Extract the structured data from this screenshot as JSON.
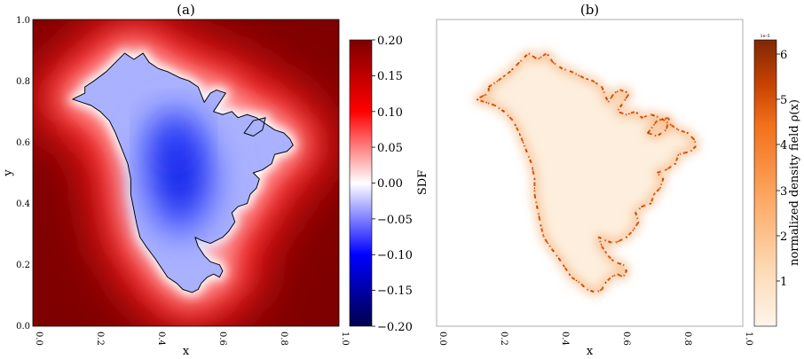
{
  "chart_data": [
    {
      "type": "heatmap",
      "panel": "a",
      "title": "(a)",
      "xlabel": "x",
      "ylabel": "y",
      "xlim": [
        0.0,
        1.0
      ],
      "ylim": [
        0.0,
        1.0
      ],
      "xticks": [
        "0.0",
        "0.2",
        "0.4",
        "0.6",
        "0.8",
        "1.0"
      ],
      "yticks": [
        "0.0",
        "0.2",
        "0.4",
        "0.6",
        "0.8",
        "1.0"
      ],
      "colormap": "seismic",
      "colorbar": {
        "label": "SDF",
        "range": [
          -0.2,
          0.2
        ],
        "ticks": [
          "0.20",
          "0.15",
          "0.10",
          "0.05",
          "0.00",
          "−0.05",
          "−0.10",
          "−0.15",
          "−0.20"
        ],
        "colors": {
          "low": "#00004d",
          "mid_low": "#0000ff",
          "zero": "#ffffff",
          "mid_high": "#ff0000",
          "high": "#7f0000"
        }
      },
      "contour": "zero level set (coastline), black"
    },
    {
      "type": "heatmap",
      "panel": "b",
      "title": "(b)",
      "xlabel": "x",
      "ylabel": "",
      "xlim": [
        0.0,
        1.0
      ],
      "ylim": [
        0.0,
        1.0
      ],
      "xticks": [
        "0.0",
        "0.2",
        "0.4",
        "0.6",
        "0.8",
        "1.0"
      ],
      "colormap": "Oranges",
      "colorbar": {
        "label": "normalized density field  ρ(x)",
        "offset_text": "1e-5",
        "range": [
          0.0,
          6.3
        ],
        "ticks": [
          "6",
          "5",
          "4",
          "3",
          "2",
          "1"
        ],
        "colors": {
          "low": "#fff5eb",
          "high": "#7f2704"
        }
      }
    }
  ]
}
